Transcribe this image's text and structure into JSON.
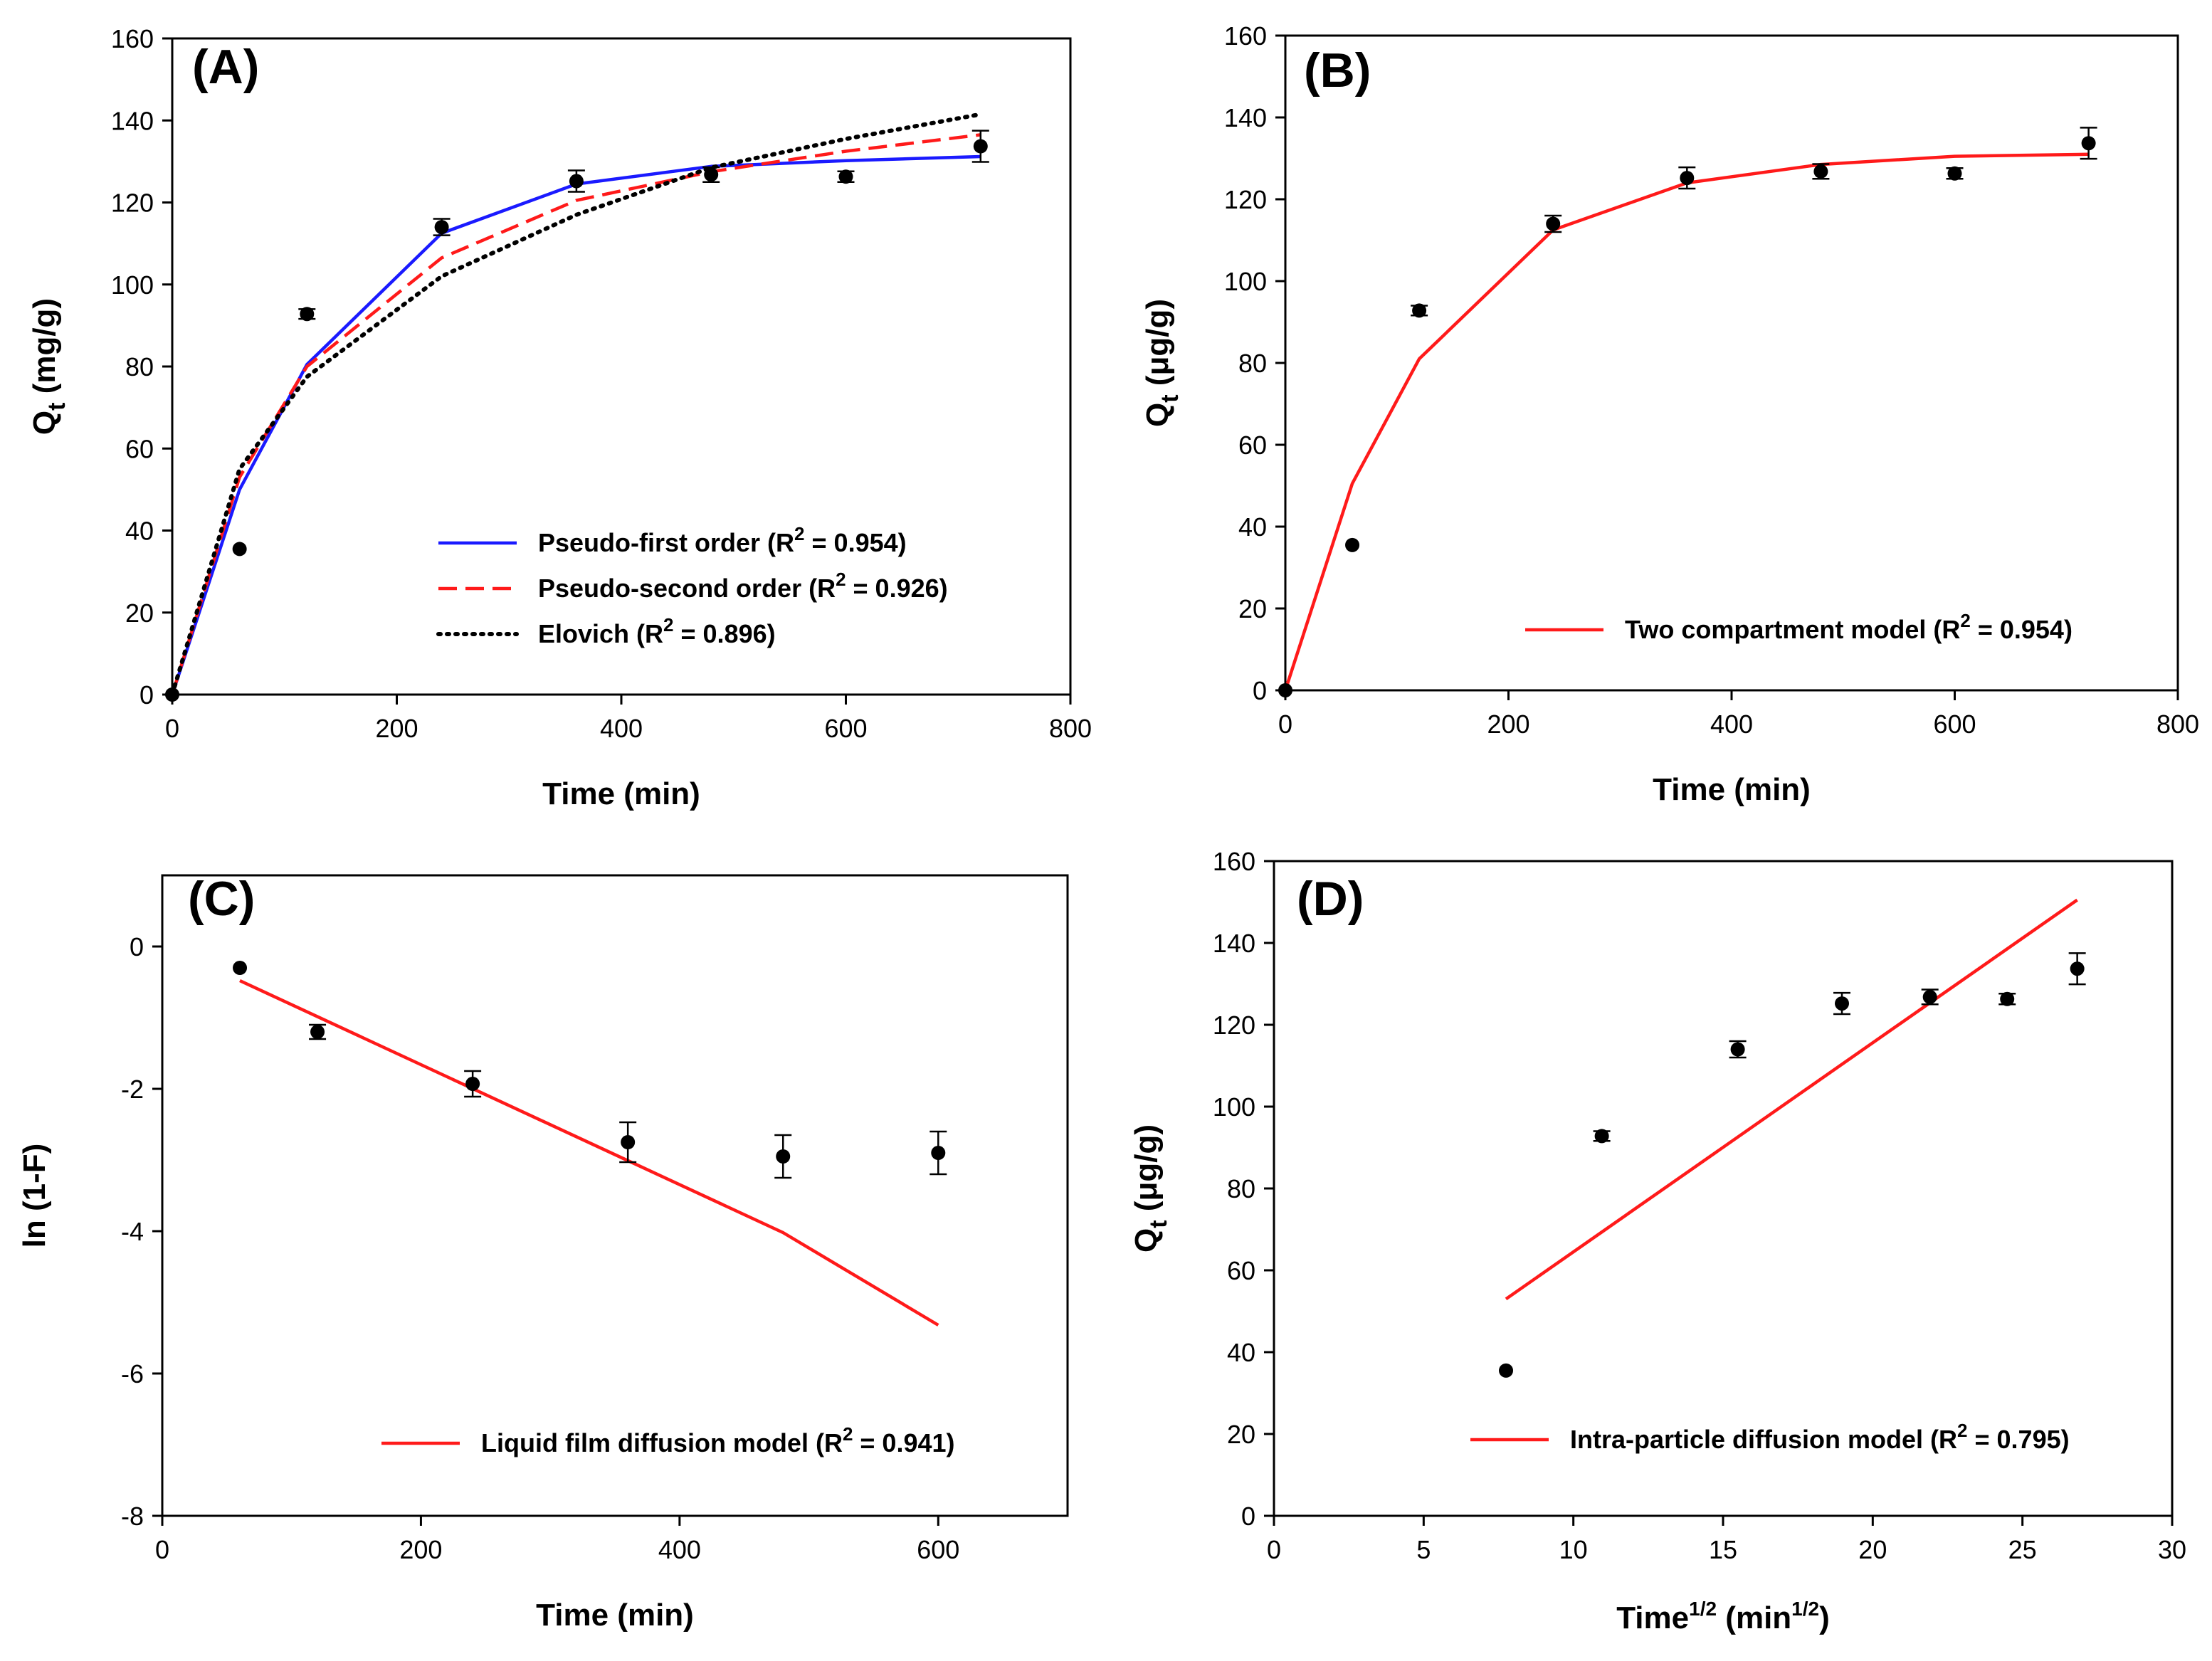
{
  "colors": {
    "pfo": "#1a1aff",
    "pso": "#ff1a1a",
    "elovich": "#000000",
    "model": "#ff1a1a",
    "marker": "#000000",
    "background": "#ffffff"
  },
  "chart_data": [
    {
      "type": "scatter",
      "panel": "(A)",
      "xlabel": "Time (min)",
      "ylabel_main": "Q",
      "ylabel_sub": "t",
      "ylabel_rest": " (mg/g)",
      "xlim": [
        0,
        800
      ],
      "ylim": [
        0,
        160
      ],
      "xticks": [
        0,
        200,
        400,
        600,
        800
      ],
      "yticks": [
        0,
        20,
        40,
        60,
        80,
        100,
        120,
        140,
        160
      ],
      "points": {
        "x": [
          0,
          60,
          120,
          240,
          360,
          480,
          600,
          720
        ],
        "y": [
          0,
          35.5,
          92.8,
          114,
          125.2,
          126.8,
          126.3,
          133.7
        ],
        "err": [
          0,
          0,
          1.2,
          2.0,
          2.6,
          1.8,
          1.3,
          3.8
        ]
      },
      "series": [
        {
          "name": "Pseudo-first order (R",
          "name_tail": " = 0.954)",
          "style": "solid",
          "color_key": "pfo",
          "x": [
            0,
            60,
            120,
            240,
            360,
            480,
            600,
            720
          ],
          "y": [
            0,
            50,
            80.5,
            112.5,
            124.5,
            128.8,
            130.2,
            131.2
          ]
        },
        {
          "name": "Pseudo-second order (R",
          "name_tail": " = 0.926)",
          "style": "dashed",
          "color_key": "pso",
          "x": [
            0,
            60,
            120,
            240,
            360,
            480,
            600,
            720
          ],
          "y": [
            0,
            53,
            80,
            106.5,
            120.5,
            127.5,
            132.5,
            136.5
          ]
        },
        {
          "name": "Elovich (R",
          "name_tail": " = 0.896)",
          "style": "dotted",
          "color_key": "elovich",
          "x": [
            0,
            60,
            120,
            240,
            360,
            480,
            600,
            720
          ],
          "y": [
            0,
            55,
            77.5,
            102,
            117,
            128.5,
            135.5,
            141.5
          ]
        }
      ],
      "legend": "bottom-right"
    },
    {
      "type": "scatter",
      "panel": "(B)",
      "xlabel": "Time (min)",
      "ylabel_main": "Q",
      "ylabel_sub": "t",
      "ylabel_rest": " (μg/g)",
      "xlim": [
        0,
        800
      ],
      "ylim": [
        0,
        160
      ],
      "xticks": [
        0,
        200,
        400,
        600,
        800
      ],
      "yticks": [
        0,
        20,
        40,
        60,
        80,
        100,
        120,
        140,
        160
      ],
      "points": {
        "x": [
          0,
          60,
          120,
          240,
          360,
          480,
          600,
          720
        ],
        "y": [
          0,
          35.5,
          92.8,
          114,
          125.2,
          126.8,
          126.3,
          133.7
        ],
        "err": [
          0,
          0,
          1.2,
          2.0,
          2.6,
          1.8,
          1.3,
          3.8
        ]
      },
      "series": [
        {
          "name": "Two compartment model (R",
          "name_tail": " = 0.954)",
          "style": "solid",
          "color_key": "model",
          "x": [
            0,
            60,
            120,
            240,
            360,
            480,
            600,
            720
          ],
          "y": [
            0,
            50.5,
            81,
            112.5,
            124,
            128.5,
            130.5,
            131
          ]
        }
      ],
      "legend": "bottom-right"
    },
    {
      "type": "scatter",
      "panel": "(C)",
      "xlabel": "Time (min)",
      "ylabel_main": "ln (1-F)",
      "ylabel_sub": "",
      "ylabel_rest": "",
      "xlim": [
        0,
        700
      ],
      "ylim": [
        -8,
        1
      ],
      "xticks": [
        0,
        200,
        400,
        600
      ],
      "yticks": [
        -8,
        -6,
        -4,
        -2,
        0
      ],
      "points": {
        "x": [
          60,
          120,
          240,
          360,
          480,
          600
        ],
        "y": [
          -0.3,
          -1.2,
          -1.93,
          -2.75,
          -2.95,
          -2.9
        ],
        "err": [
          0,
          0.1,
          0.18,
          0.28,
          0.3,
          0.3
        ]
      },
      "series": [
        {
          "name": "Liquid film diffusion model (R",
          "name_tail": " = 0.941)",
          "style": "solid",
          "color_key": "model",
          "x": [
            60,
            480,
            600
          ],
          "y": [
            -0.48,
            -4.02,
            -5.32
          ]
        }
      ],
      "legend": "bottom-right"
    },
    {
      "type": "scatter",
      "panel": "(D)",
      "xlabel_main": "Time",
      "xlabel_sup1": "1/2",
      "xlabel_mid": " (min",
      "xlabel_sup2": "1/2",
      "xlabel_end": ")",
      "ylabel_main": "Q",
      "ylabel_sub": "t",
      "ylabel_rest": " (μg/g)",
      "xlim": [
        0,
        30
      ],
      "ylim": [
        0,
        160
      ],
      "xticks": [
        0,
        5,
        10,
        15,
        20,
        25,
        30
      ],
      "yticks": [
        0,
        20,
        40,
        60,
        80,
        100,
        120,
        140,
        160
      ],
      "points": {
        "x": [
          7.75,
          10.95,
          15.49,
          18.97,
          21.91,
          24.49,
          26.83
        ],
        "y": [
          35.5,
          92.8,
          114,
          125.2,
          126.8,
          126.3,
          133.7
        ],
        "err": [
          0,
          1.2,
          2.0,
          2.6,
          1.8,
          1.3,
          3.8
        ]
      },
      "series": [
        {
          "name": "Intra-particle diffusion model (R",
          "name_tail": " = 0.795)",
          "style": "solid",
          "color_key": "model",
          "x": [
            7.75,
            26.83
          ],
          "y": [
            53,
            150.5
          ]
        }
      ],
      "legend": "bottom-right"
    }
  ]
}
